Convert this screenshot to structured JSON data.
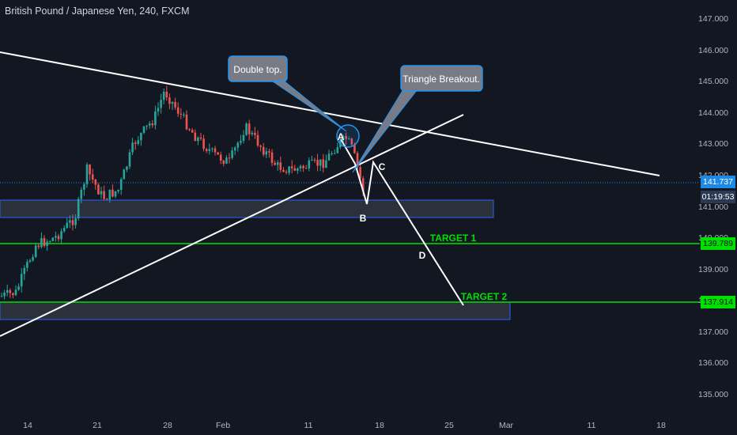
{
  "header": {
    "title": "British Pound / Japanese Yen, 240, FXCM"
  },
  "price_axis": {
    "ticks": [
      "147.000",
      "146.000",
      "145.000",
      "144.000",
      "143.000",
      "142.000",
      "141.000",
      "140.000",
      "139.000",
      "138.000",
      "137.000",
      "136.000",
      "135.000"
    ],
    "current_price": "141.737",
    "countdown": "01:19:53",
    "target1_price": "139.789",
    "target2_price": "137.914"
  },
  "time_axis": {
    "ticks": [
      "14",
      "21",
      "28",
      "Feb",
      "11",
      "18",
      "25",
      "Mar",
      "11",
      "18"
    ]
  },
  "annotations": {
    "double_top": "Double top.",
    "triangle_breakout": "Triangle Breakout.",
    "target1": "TARGET 1",
    "target2": "TARGET 2",
    "wave_a": "A",
    "wave_b": "B",
    "wave_c": "C",
    "wave_d": "D"
  },
  "colors": {
    "background": "#131722",
    "up_candle": "#26a69a",
    "down_candle": "#ef5350",
    "target_line": "#00e000",
    "zone_border": "#2962ff",
    "current_price_line": "#1e88e5",
    "label_box_fill": "#787b86",
    "label_box_border": "#2196f3"
  }
}
